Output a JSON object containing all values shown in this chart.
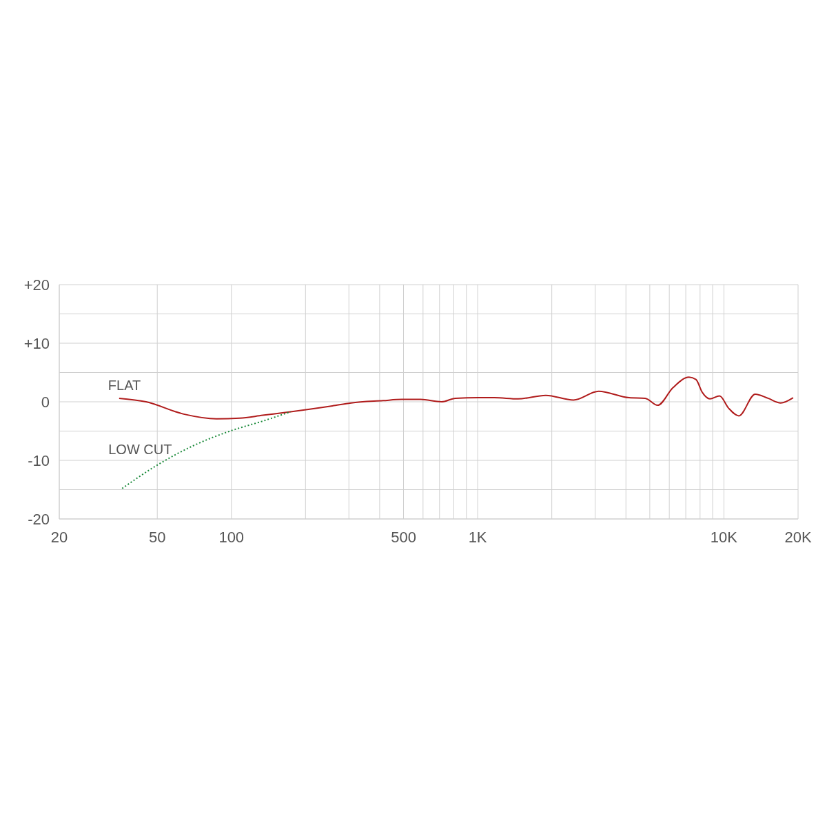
{
  "chart_data": {
    "type": "line",
    "log": "x",
    "grid": true,
    "legend": false,
    "xlim": [
      20,
      20000
    ],
    "xticks": [
      20,
      50,
      100,
      {
        "value": 200,
        "label": null
      },
      {
        "value": 300,
        "label": null
      },
      {
        "value": 400,
        "label": null
      },
      500,
      {
        "value": 600,
        "label": null
      },
      {
        "value": 700,
        "label": null
      },
      {
        "value": 800,
        "label": null
      },
      {
        "value": 900,
        "label": null
      },
      {
        "value": 1000,
        "label": "1K"
      },
      {
        "value": 2000,
        "label": null
      },
      {
        "value": 3000,
        "label": null
      },
      {
        "value": 4000,
        "label": null
      },
      {
        "value": 5000,
        "label": null
      },
      {
        "value": 6000,
        "label": null
      },
      {
        "value": 7000,
        "label": null
      },
      {
        "value": 8000,
        "label": null
      },
      {
        "value": 9000,
        "label": null
      },
      {
        "value": 10000,
        "label": "10K"
      },
      {
        "value": 20000,
        "label": "20K"
      }
    ],
    "ylim": [
      -20,
      20
    ],
    "yticks": [
      -20,
      {
        "value": -15,
        "label": null
      },
      -10,
      {
        "value": -5,
        "label": null
      },
      0,
      {
        "value": 5,
        "label": null
      },
      {
        "value": 10,
        "label": "+10"
      },
      {
        "value": 15,
        "label": null
      },
      {
        "value": 20,
        "label": "+20"
      }
    ],
    "series": [
      {
        "name": "FLAT",
        "color": "#b01c1c",
        "line_style": "solid",
        "x": [
          35,
          45,
          64,
          87,
          108,
          134,
          174,
          257,
          306,
          413,
          492,
          587,
          713,
          812,
          1007,
          1170,
          1460,
          1890,
          2450,
          3100,
          4120,
          4790,
          5380,
          6210,
          7210,
          7700,
          8170,
          8770,
          9600,
          10450,
          11500,
          13400,
          15100,
          17000,
          19100
        ],
        "values": [
          0.6,
          0,
          -2.1,
          -2.9,
          -2.8,
          -2.3,
          -1.7,
          -0.7,
          -0.2,
          0.2,
          0.4,
          0.4,
          0,
          0.6,
          0.7,
          0.7,
          0.5,
          1.1,
          0.3,
          1.8,
          0.7,
          0.6,
          -0.6,
          2.4,
          4.2,
          3.8,
          1.6,
          0.5,
          1.0,
          -1.1,
          -2.4,
          1.3,
          0.6,
          -0.2,
          0.7
        ]
      },
      {
        "name": "LOW CUT",
        "color": "#1a8a3a",
        "line_style": "dotted",
        "x": [
          36,
          50,
          70,
          102,
          134,
          174
        ],
        "values": [
          -14.8,
          -10.8,
          -7.5,
          -4.8,
          -3.3,
          -1.7
        ]
      }
    ]
  }
}
